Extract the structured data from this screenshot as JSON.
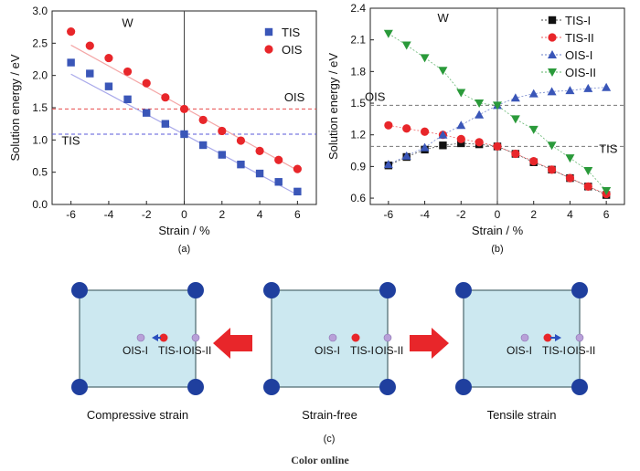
{
  "chart_data": [
    {
      "type": "scatter",
      "panel_label": "(a)",
      "xlabel": "Strain / %",
      "ylabel": "Solution energy / eV",
      "xlim": [
        -7,
        7
      ],
      "ylim": [
        0.0,
        3.0
      ],
      "xticks": [
        -6,
        -4,
        -2,
        0,
        2,
        4,
        6
      ],
      "yticks": [
        0.0,
        0.5,
        1.0,
        1.5,
        2.0,
        2.5,
        3.0
      ],
      "xtick_labels": [
        "-6",
        "-4",
        "-2",
        "0",
        "2",
        "4",
        "6"
      ],
      "ytick_labels": [
        "0.0",
        "0.5",
        "1.0",
        "1.5",
        "2.0",
        "2.5",
        "3.0"
      ],
      "annotations": [
        {
          "text": "W",
          "x": -3.3,
          "y": 2.75
        },
        {
          "text": "OIS",
          "x": 5.3,
          "y": 1.6
        },
        {
          "text": "TIS",
          "x": -6.5,
          "y": 0.93
        }
      ],
      "reference_lines": [
        {
          "y": 1.48,
          "color": "#e84a4a",
          "style": "dashed"
        },
        {
          "y": 1.09,
          "color": "#5a5ad8",
          "style": "dashed"
        }
      ],
      "legend_position": "top-right",
      "series": [
        {
          "name": "TIS",
          "marker": "square",
          "color": "#3a56b8",
          "line_color": "#a8a8ea",
          "x": [
            -6,
            -5,
            -4,
            -3,
            -2,
            -1,
            0,
            1,
            2,
            3,
            4,
            5,
            6
          ],
          "y": [
            2.2,
            2.03,
            1.83,
            1.63,
            1.42,
            1.25,
            1.09,
            0.92,
            0.77,
            0.62,
            0.48,
            0.35,
            0.2
          ],
          "fit": [
            2.02,
            0.15
          ]
        },
        {
          "name": "OIS",
          "marker": "circle",
          "color": "#e8262a",
          "line_color": "#f4a6a6",
          "x": [
            -6,
            -5,
            -4,
            -3,
            -2,
            -1,
            0,
            1,
            2,
            3,
            4,
            5,
            6
          ],
          "y": [
            2.68,
            2.46,
            2.27,
            2.06,
            1.88,
            1.66,
            1.48,
            1.31,
            1.14,
            0.99,
            0.83,
            0.69,
            0.55
          ],
          "fit": [
            2.47,
            0.53
          ]
        }
      ]
    },
    {
      "type": "line",
      "panel_label": "(b)",
      "xlabel": "Strain / %",
      "ylabel": "Solution energy / eV",
      "xlim": [
        -7,
        7
      ],
      "ylim": [
        0.54,
        2.4
      ],
      "xticks": [
        -6,
        -4,
        -2,
        0,
        2,
        4,
        6
      ],
      "yticks": [
        0.6,
        0.9,
        1.2,
        1.5,
        1.8,
        2.1,
        2.4
      ],
      "xtick_labels": [
        "-6",
        "-4",
        "-2",
        "0",
        "2",
        "4",
        "6"
      ],
      "ytick_labels": [
        "0.6",
        "0.9",
        "1.2",
        "1.5",
        "1.8",
        "2.1",
        "2.4"
      ],
      "annotations": [
        {
          "text": "W",
          "x": -3.3,
          "y": 2.27
        },
        {
          "text": "OIS",
          "x": -7.3,
          "y": 1.52
        },
        {
          "text": "TIS",
          "x": 5.6,
          "y": 1.03
        }
      ],
      "reference_lines": [
        {
          "y": 1.48,
          "color": "#777777",
          "style": "dashed"
        },
        {
          "y": 1.09,
          "color": "#777777",
          "style": "dashed"
        }
      ],
      "legend_position": "top-right",
      "series": [
        {
          "name": "TIS-I",
          "marker": "square",
          "color": "#111111",
          "x": [
            -6,
            -5,
            -4,
            -3,
            -2,
            -1,
            0,
            1,
            2,
            3,
            4,
            5,
            6
          ],
          "y": [
            0.91,
            0.99,
            1.06,
            1.1,
            1.12,
            1.11,
            1.09,
            1.02,
            0.94,
            0.87,
            0.79,
            0.71,
            0.63
          ]
        },
        {
          "name": "TIS-II",
          "marker": "circle",
          "color": "#e8262a",
          "x": [
            -6,
            -5,
            -4,
            -3,
            -2,
            -1,
            0,
            1,
            2,
            3,
            4,
            5,
            6
          ],
          "y": [
            1.29,
            1.26,
            1.23,
            1.2,
            1.16,
            1.13,
            1.09,
            1.02,
            0.95,
            0.87,
            0.79,
            0.71,
            0.64
          ]
        },
        {
          "name": "OIS-I",
          "marker": "triangle-up",
          "color": "#3a56b8",
          "x": [
            -6,
            -5,
            -4,
            -3,
            -2,
            -1,
            0,
            1,
            2,
            3,
            4,
            5,
            6
          ],
          "y": [
            0.92,
            1.0,
            1.08,
            1.2,
            1.29,
            1.39,
            1.48,
            1.55,
            1.59,
            1.61,
            1.62,
            1.64,
            1.65
          ]
        },
        {
          "name": "OIS-II",
          "marker": "triangle-down",
          "color": "#2a9a3a",
          "x": [
            -6,
            -5,
            -4,
            -3,
            -2,
            -1,
            0,
            1,
            2,
            3,
            4,
            5,
            6
          ],
          "y": [
            2.16,
            2.05,
            1.93,
            1.81,
            1.6,
            1.5,
            1.48,
            1.35,
            1.25,
            1.1,
            0.98,
            0.86,
            0.67
          ]
        }
      ]
    }
  ],
  "diagram": {
    "panel_label": "(c)",
    "colors": {
      "cell_fill": "#cce8f0",
      "cell_border": "#607a80",
      "corner": "#1f3f9e",
      "red_site": "#e8262a",
      "purple_site": "#b8a0d8",
      "arrow": "#e8262a",
      "blue_arrow": "#2a4fbf"
    },
    "cells": [
      {
        "caption": "Compressive strain",
        "site_labels": [
          "OIS-I",
          "TIS-I",
          "OIS-II"
        ],
        "shift": "left"
      },
      {
        "caption": "Strain-free",
        "site_labels": [
          "OIS-I",
          "TIS-I",
          "OIS-II"
        ],
        "shift": "none"
      },
      {
        "caption": "Tensile strain",
        "site_labels": [
          "OIS-I",
          "TIS-I",
          "OIS-II"
        ],
        "shift": "right"
      }
    ]
  },
  "footer": {
    "color_online": "Color online"
  }
}
